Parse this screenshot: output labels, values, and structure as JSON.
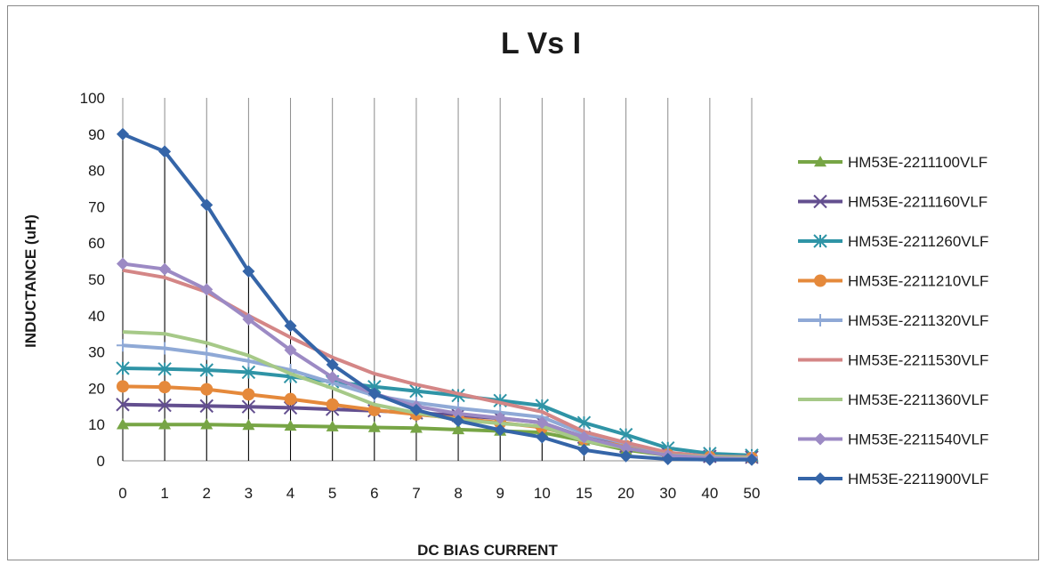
{
  "chart_data": {
    "type": "line",
    "title": "L Vs I",
    "xlabel": "DC BIAS CURRENT",
    "ylabel": "INDUCTANCE (uH)",
    "categories": [
      "0",
      "1",
      "2",
      "3",
      "4",
      "5",
      "6",
      "7",
      "8",
      "9",
      "10",
      "15",
      "20",
      "30",
      "40",
      "50"
    ],
    "ylim": [
      0,
      100
    ],
    "yticks": [
      0,
      10,
      20,
      30,
      40,
      50,
      60,
      70,
      80,
      90,
      100
    ],
    "grid": "vertical",
    "legend_position": "right",
    "series": [
      {
        "name": "HM53E-2211100VLF",
        "color": "#77a545",
        "marker": "triangle",
        "values": [
          10,
          10,
          10,
          9.8,
          9.6,
          9.4,
          9.2,
          9,
          8.6,
          8.2,
          7.8,
          5.5,
          3,
          1.5,
          1,
          0.8
        ]
      },
      {
        "name": "HM53E-2211160VLF",
        "color": "#634f8f",
        "marker": "x",
        "values": [
          15.5,
          15.3,
          15.1,
          14.9,
          14.6,
          14.2,
          13.8,
          13.2,
          12.5,
          11.7,
          10.5,
          6.5,
          4,
          2,
          1.2,
          1
        ]
      },
      {
        "name": "HM53E-2211260VLF",
        "color": "#2f94a6",
        "marker": "asterisk",
        "values": [
          25.5,
          25.3,
          25,
          24.4,
          23.2,
          21.8,
          20.4,
          19.2,
          18,
          16.6,
          15.2,
          10.5,
          7.2,
          3.5,
          2,
          1.5
        ]
      },
      {
        "name": "HM53E-2211210VLF",
        "color": "#e5893b",
        "marker": "circle",
        "values": [
          20.5,
          20.3,
          19.7,
          18.3,
          17,
          15.5,
          14,
          12.8,
          11.7,
          10.5,
          9.2,
          6,
          4,
          1.7,
          1,
          0.8
        ]
      },
      {
        "name": "HM53E-2211320VLF",
        "color": "#8fa9d6",
        "marker": "plus",
        "values": [
          31.8,
          31,
          29.5,
          27.5,
          25,
          21.5,
          18,
          16,
          14.5,
          13.3,
          12,
          7.5,
          4.8,
          2.2,
          1.2,
          1
        ]
      },
      {
        "name": "HM53E-2211530VLF",
        "color": "#d48686",
        "marker": "none",
        "values": [
          52.5,
          50.5,
          46.5,
          40,
          34,
          28.5,
          24,
          21,
          18.5,
          16,
          13.5,
          8,
          5,
          2.3,
          1.2,
          1
        ]
      },
      {
        "name": "HM53E-2211360VLF",
        "color": "#a6c988",
        "marker": "none",
        "values": [
          35.5,
          35,
          32.5,
          29,
          24,
          20,
          15.5,
          13.2,
          11.3,
          10.3,
          9.5,
          5.5,
          3.5,
          1.6,
          1,
          0.8
        ]
      },
      {
        "name": "HM53E-2211540VLF",
        "color": "#9c8ac4",
        "marker": "diamond",
        "values": [
          54.3,
          52.8,
          47.2,
          39,
          30.5,
          23,
          18.5,
          15,
          13,
          11.8,
          10.5,
          6.5,
          3.5,
          1.5,
          0.8,
          0.5
        ]
      },
      {
        "name": "HM53E-2211900VLF",
        "color": "#3565a8",
        "marker": "diamond",
        "values": [
          90,
          85.2,
          70.5,
          52.2,
          37.2,
          26.5,
          18.5,
          14,
          11,
          8.5,
          6.5,
          3,
          1.3,
          0.5,
          0.3,
          0.3
        ]
      }
    ]
  }
}
